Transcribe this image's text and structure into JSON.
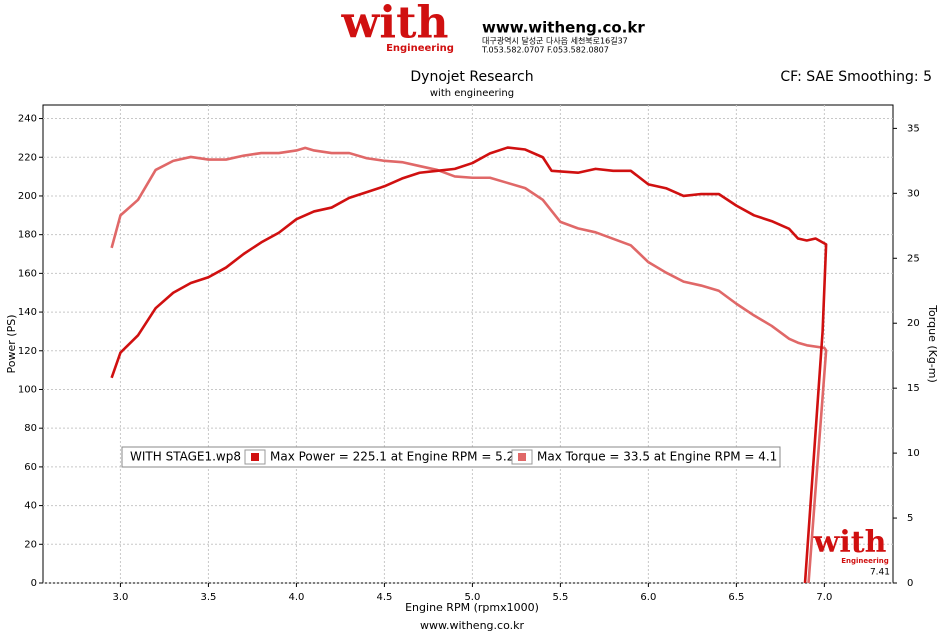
{
  "header": {
    "logo": "with",
    "logo_sub": "Engineering",
    "url": "www.witheng.co.kr",
    "address": "대구광역시 달성군 다사읍 세천북로16길37",
    "phone": "T.053.582.0707 F.053.582.0807"
  },
  "chart_data": {
    "type": "line",
    "title": "Dynojet Research",
    "subtitle": "with engineering",
    "correction": "CF: SAE Smoothing: 5",
    "xlabel": "Engine RPM (rpmx1000)",
    "ylabel": "Power (PS)",
    "y2label": "Torque (Kg-m)",
    "xlim": [
      2.56,
      7.39
    ],
    "ylim": [
      0,
      247
    ],
    "y2lim": [
      0,
      36.8
    ],
    "xticks": [
      {
        "value": 3,
        "label": "3.0"
      },
      3.5,
      {
        "value": 4,
        "label": "4.0"
      },
      4.5,
      {
        "value": 5,
        "label": "5.0"
      },
      5.5,
      {
        "value": 6,
        "label": "6.0"
      },
      6.5,
      {
        "value": 7,
        "label": "7.0"
      }
    ],
    "yticks": [
      0,
      20,
      40,
      60,
      80,
      100,
      120,
      140,
      160,
      180,
      200,
      220,
      240
    ],
    "y2ticks": [
      0,
      5,
      10,
      15,
      20,
      25,
      30,
      35
    ],
    "grid": true,
    "series": [
      {
        "color": "#d01010",
        "axis": "y",
        "x": [
          2.95,
          3.0,
          3.1,
          3.2,
          3.3,
          3.4,
          3.5,
          3.6,
          3.7,
          3.8,
          3.9,
          4.0,
          4.1,
          4.2,
          4.3,
          4.4,
          4.5,
          4.6,
          4.7,
          4.8,
          4.9,
          5.0,
          5.1,
          5.2,
          5.3,
          5.4,
          5.45,
          5.6,
          5.7,
          5.8,
          5.9,
          6.0,
          6.1,
          6.2,
          6.3,
          6.4,
          6.5,
          6.6,
          6.7,
          6.8,
          6.85,
          6.9,
          6.95,
          7.01,
          6.99,
          6.89
        ],
        "values": [
          106,
          119,
          128,
          142,
          150,
          155,
          158,
          163,
          170,
          176,
          181,
          188,
          192,
          194,
          199,
          202,
          205,
          209,
          212,
          213,
          214,
          217,
          222,
          225,
          224,
          220,
          213,
          212,
          214,
          213,
          213,
          206,
          204,
          200,
          201,
          201,
          195,
          190,
          187,
          183,
          178,
          177,
          178,
          175,
          130,
          0
        ]
      },
      {
        "color": "#e06868",
        "axis": "y2",
        "x": [
          2.95,
          3.0,
          3.1,
          3.2,
          3.3,
          3.4,
          3.5,
          3.6,
          3.7,
          3.8,
          3.9,
          4.0,
          4.05,
          4.1,
          4.2,
          4.3,
          4.4,
          4.5,
          4.6,
          4.7,
          4.8,
          4.9,
          5.0,
          5.1,
          5.2,
          5.3,
          5.4,
          5.5,
          5.6,
          5.7,
          5.8,
          5.9,
          6.0,
          6.1,
          6.2,
          6.3,
          6.4,
          6.5,
          6.6,
          6.7,
          6.8,
          6.85,
          6.9,
          7.0,
          7.01,
          6.96,
          6.91
        ],
        "values": [
          25.8,
          28.3,
          29.5,
          31.8,
          32.5,
          32.8,
          32.6,
          32.6,
          32.9,
          33.1,
          33.1,
          33.3,
          33.5,
          33.3,
          33.1,
          33.1,
          32.7,
          32.5,
          32.4,
          32.1,
          31.8,
          31.3,
          31.2,
          31.2,
          30.8,
          30.4,
          29.5,
          27.8,
          27.3,
          27.0,
          26.5,
          26.0,
          24.7,
          23.9,
          23.2,
          22.9,
          22.5,
          21.5,
          20.6,
          19.8,
          18.8,
          18.5,
          18.3,
          18.1,
          17.9,
          9,
          0
        ]
      }
    ],
    "legend": {
      "run": "WITH STAGE1.wp8",
      "items": [
        "Max Power = 225.1 at Engine RPM = 5.2",
        "Max Torque = 33.5 at Engine RPM = 4.1"
      ]
    },
    "watermark": "with",
    "watermark_sub": "Engineering",
    "version": "7.41"
  },
  "footer": "www.witheng.co.kr"
}
